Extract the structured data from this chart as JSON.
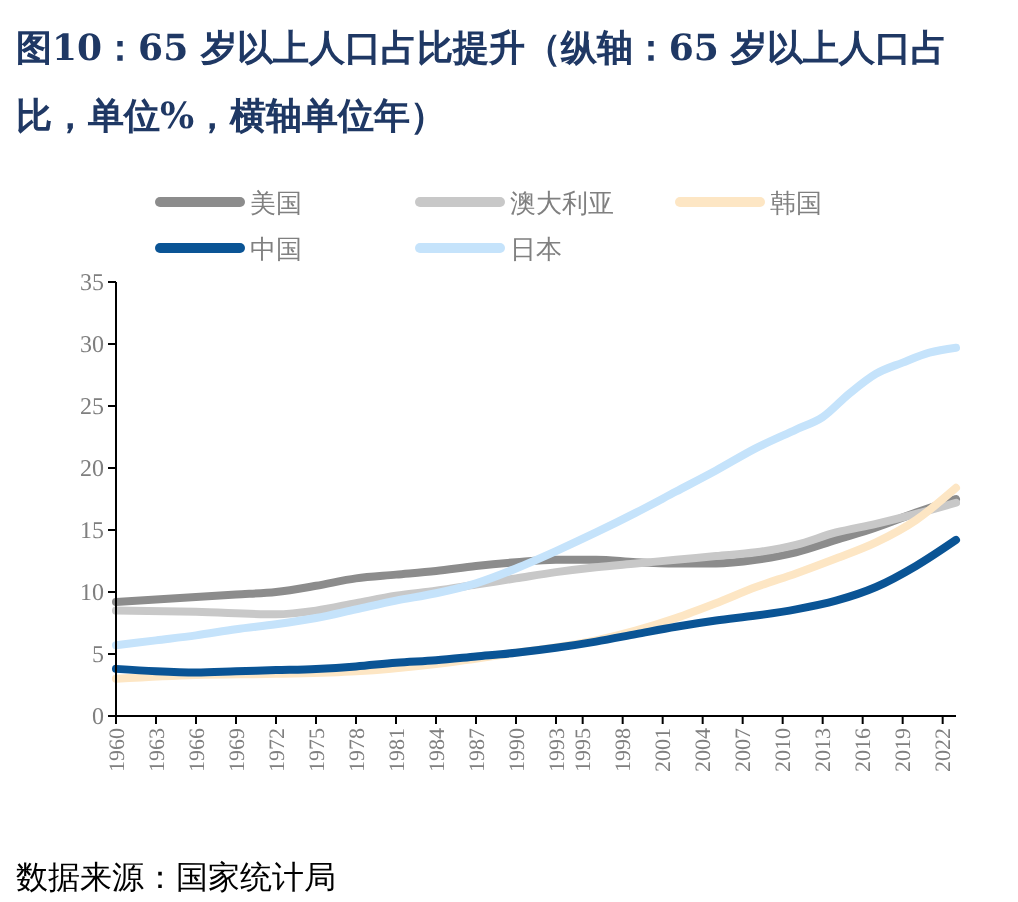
{
  "chart_data": {
    "type": "line",
    "title": "图10：65 岁以上人口占比提升（纵轴：65 岁以上人口占比，单位%，横轴单位年）",
    "xlim": [
      1960,
      2023
    ],
    "xticks": [
      1960,
      1963,
      1966,
      1969,
      1972,
      1975,
      1978,
      1981,
      1984,
      1987,
      1990,
      1993,
      1995,
      1998,
      2001,
      2004,
      2007,
      2010,
      2013,
      2016,
      2019,
      2022
    ],
    "ylim": [
      0,
      35
    ],
    "yticks": [
      0,
      5,
      10,
      15,
      20,
      25,
      30,
      35
    ],
    "legend": "top",
    "grid": false,
    "annotations": [
      "数据来源：国家统计局"
    ],
    "series": [
      {
        "name": "美国",
        "color": "#8c8c8c",
        "x": [
          1960,
          1963,
          1966,
          1969,
          1972,
          1975,
          1978,
          1981,
          1984,
          1987,
          1990,
          1993,
          1996,
          1999,
          2002,
          2005,
          2008,
          2011,
          2014,
          2017,
          2020,
          2023
        ],
        "values": [
          9.2,
          9.4,
          9.6,
          9.8,
          10.0,
          10.5,
          11.1,
          11.4,
          11.7,
          12.1,
          12.4,
          12.6,
          12.6,
          12.4,
          12.3,
          12.3,
          12.6,
          13.2,
          14.2,
          15.2,
          16.4,
          17.5
        ]
      },
      {
        "name": "澳大利亚",
        "color": "#c8c8c8",
        "x": [
          1960,
          1966,
          1972,
          1975,
          1978,
          1981,
          1984,
          1987,
          1990,
          1993,
          1996,
          1999,
          2002,
          2005,
          2008,
          2011,
          2014,
          2017,
          2020,
          2023
        ],
        "values": [
          8.5,
          8.4,
          8.2,
          8.5,
          9.1,
          9.7,
          10.1,
          10.6,
          11.1,
          11.6,
          12.0,
          12.3,
          12.6,
          12.9,
          13.2,
          13.8,
          14.8,
          15.5,
          16.3,
          17.2
        ]
      },
      {
        "name": "韩国",
        "color": "#fde6c4",
        "x": [
          1960,
          1966,
          1972,
          1978,
          1984,
          1990,
          1996,
          2002,
          2005,
          2008,
          2011,
          2014,
          2017,
          2020,
          2023
        ],
        "values": [
          3.0,
          3.3,
          3.4,
          3.6,
          4.2,
          5.1,
          6.1,
          7.9,
          9.1,
          10.4,
          11.5,
          12.7,
          14.0,
          15.8,
          18.4
        ]
      },
      {
        "name": "中国",
        "color": "#0a5495",
        "x": [
          1960,
          1963,
          1966,
          1969,
          1972,
          1975,
          1978,
          1981,
          1984,
          1987,
          1990,
          1993,
          1996,
          1999,
          2002,
          2005,
          2008,
          2011,
          2014,
          2017,
          2020,
          2023
        ],
        "values": [
          3.8,
          3.6,
          3.5,
          3.6,
          3.7,
          3.8,
          4.0,
          4.3,
          4.5,
          4.8,
          5.1,
          5.5,
          6.0,
          6.6,
          7.2,
          7.7,
          8.1,
          8.6,
          9.3,
          10.4,
          12.1,
          14.2
        ]
      },
      {
        "name": "日本",
        "color": "#c5e3fb",
        "x": [
          1960,
          1963,
          1966,
          1969,
          1972,
          1975,
          1978,
          1981,
          1984,
          1987,
          1990,
          1993,
          1996,
          1999,
          2002,
          2005,
          2008,
          2011,
          2013,
          2015,
          2017,
          2019,
          2021,
          2023
        ],
        "values": [
          5.7,
          6.1,
          6.5,
          7.0,
          7.4,
          7.9,
          8.6,
          9.3,
          9.9,
          10.7,
          11.9,
          13.3,
          14.8,
          16.4,
          18.1,
          19.8,
          21.6,
          23.1,
          24.1,
          26.0,
          27.6,
          28.5,
          29.3,
          29.7
        ]
      }
    ]
  }
}
